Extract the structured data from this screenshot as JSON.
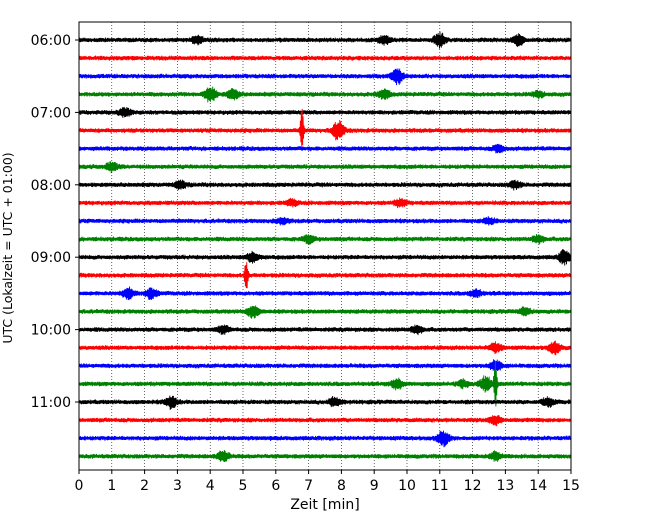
{
  "chart_data": {
    "type": "line",
    "title": "",
    "xlabel": "Zeit  [min]",
    "ylabel": "UTC (Lokalzeit = UTC + 01:00)",
    "xlim": [
      0,
      15
    ],
    "x_ticks": [
      0,
      1,
      2,
      3,
      4,
      5,
      6,
      7,
      8,
      9,
      10,
      11,
      12,
      13,
      14,
      15
    ],
    "y_tick_labels": [
      "06:00",
      "07:00",
      "08:00",
      "09:00",
      "10:00",
      "11:00"
    ],
    "grid": "vertical dotted lines at each minute",
    "trace_interval_min": 15,
    "trace_colors": [
      "#000000",
      "#ff0000",
      "#0000ff",
      "#008000"
    ],
    "traces": [
      {
        "start": "06:00",
        "color": "#000000",
        "bursts": [
          [
            3.6,
            0.5
          ],
          [
            9.3,
            0.6
          ],
          [
            11.0,
            0.9
          ],
          [
            13.4,
            0.7
          ]
        ]
      },
      {
        "start": "06:15",
        "color": "#ff0000",
        "bursts": []
      },
      {
        "start": "06:30",
        "color": "#0000ff",
        "bursts": [
          [
            9.7,
            1.0
          ]
        ]
      },
      {
        "start": "06:45",
        "color": "#008000",
        "bursts": [
          [
            4.0,
            1.0
          ],
          [
            4.7,
            0.7
          ],
          [
            9.3,
            0.6
          ],
          [
            14.0,
            0.4
          ]
        ]
      },
      {
        "start": "07:00",
        "color": "#000000",
        "bursts": [
          [
            1.4,
            0.6
          ]
        ]
      },
      {
        "start": "07:15",
        "color": "#ff0000",
        "bursts": [
          [
            6.8,
            3.0
          ],
          [
            7.9,
            1.3
          ]
        ]
      },
      {
        "start": "07:30",
        "color": "#0000ff",
        "bursts": [
          [
            12.8,
            0.5
          ]
        ]
      },
      {
        "start": "07:45",
        "color": "#008000",
        "bursts": [
          [
            1.0,
            0.6
          ]
        ]
      },
      {
        "start": "08:00",
        "color": "#000000",
        "bursts": [
          [
            3.1,
            0.5
          ],
          [
            13.3,
            0.5
          ]
        ]
      },
      {
        "start": "08:15",
        "color": "#ff0000",
        "bursts": [
          [
            6.5,
            0.4
          ],
          [
            9.8,
            0.5
          ]
        ]
      },
      {
        "start": "08:30",
        "color": "#0000ff",
        "bursts": [
          [
            6.2,
            0.4
          ],
          [
            12.5,
            0.4
          ]
        ]
      },
      {
        "start": "08:45",
        "color": "#008000",
        "bursts": [
          [
            7.0,
            0.5
          ],
          [
            14.0,
            0.5
          ]
        ]
      },
      {
        "start": "09:00",
        "color": "#000000",
        "bursts": [
          [
            5.3,
            0.7
          ],
          [
            14.8,
            0.9
          ]
        ]
      },
      {
        "start": "09:15",
        "color": "#ff0000",
        "bursts": [
          [
            5.1,
            2.2
          ]
        ]
      },
      {
        "start": "09:30",
        "color": "#0000ff",
        "bursts": [
          [
            1.5,
            0.7
          ],
          [
            2.2,
            0.7
          ],
          [
            12.1,
            0.5
          ]
        ]
      },
      {
        "start": "09:45",
        "color": "#008000",
        "bursts": [
          [
            5.3,
            0.8
          ],
          [
            13.6,
            0.5
          ]
        ]
      },
      {
        "start": "10:00",
        "color": "#000000",
        "bursts": [
          [
            4.4,
            0.5
          ],
          [
            10.3,
            0.5
          ]
        ]
      },
      {
        "start": "10:15",
        "color": "#ff0000",
        "bursts": [
          [
            14.5,
            0.8
          ],
          [
            12.7,
            0.6
          ]
        ]
      },
      {
        "start": "10:30",
        "color": "#0000ff",
        "bursts": [
          [
            12.7,
            0.7
          ]
        ]
      },
      {
        "start": "10:45",
        "color": "#008000",
        "bursts": [
          [
            9.7,
            0.7
          ],
          [
            11.7,
            0.5
          ],
          [
            12.4,
            1.0
          ],
          [
            12.7,
            3.0
          ]
        ]
      },
      {
        "start": "11:00",
        "color": "#000000",
        "bursts": [
          [
            2.8,
            0.8
          ],
          [
            7.8,
            0.6
          ],
          [
            14.3,
            0.6
          ]
        ]
      },
      {
        "start": "11:15",
        "color": "#ff0000",
        "bursts": [
          [
            12.7,
            0.6
          ]
        ]
      },
      {
        "start": "11:30",
        "color": "#0000ff",
        "bursts": [
          [
            11.1,
            1.0
          ]
        ]
      },
      {
        "start": "11:45",
        "color": "#008000",
        "bursts": [
          [
            4.4,
            0.7
          ],
          [
            12.7,
            0.6
          ]
        ]
      }
    ]
  }
}
